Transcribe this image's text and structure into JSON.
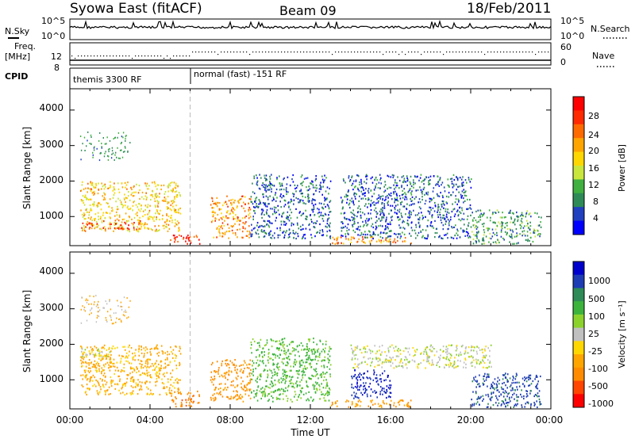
{
  "header": {
    "title": "Syowa East (fitACF)",
    "beam": "Beam 09",
    "date": "18/Feb/2011"
  },
  "strips": {
    "nsky_label": "N.Sky",
    "nsearch_label": "N.Search",
    "nsky_ticks": [
      "10^5",
      "10^0"
    ],
    "nsearch_ticks": [
      "10^5",
      "10^0"
    ],
    "freq_label_1": "Freq.",
    "freq_label_2": "[MHz]",
    "freq_ticks": [
      "12",
      "8"
    ],
    "nave_label": "Nave",
    "nave_ticks": [
      "60",
      "0"
    ],
    "cpid_label": "CPID",
    "cpid_segments": [
      "themis 3300 RF",
      "normal (fast) -151 RF"
    ]
  },
  "power_panel": {
    "ylabel": "Slant Range [km]",
    "yticks": [
      "4000",
      "3000",
      "2000",
      "1000"
    ],
    "colorbar_label": "Power [dB]",
    "colorbar_ticks": [
      "28",
      "24",
      "20",
      "16",
      "12",
      "8",
      "4"
    ],
    "colors": [
      "#0000ff",
      "#2040c0",
      "#2e8b57",
      "#40b040",
      "#c8e63c",
      "#ffd700",
      "#ffa500",
      "#ff6a00",
      "#ff2a00",
      "#ff0000"
    ]
  },
  "velocity_panel": {
    "ylabel": "Slant Range [km]",
    "yticks": [
      "4000",
      "3000",
      "2000",
      "1000"
    ],
    "colorbar_label": "Velocity [m s⁻¹]",
    "colorbar_ticks": [
      "1000",
      "500",
      "100",
      "25",
      "-25",
      "-100",
      "-500",
      "-1000"
    ],
    "colors": [
      "#0000cd",
      "#1e3cb4",
      "#2e8b57",
      "#3cb43c",
      "#8cd22d",
      "#c0c0c0",
      "#ffd700",
      "#ffa500",
      "#ff8c00",
      "#ff4500",
      "#ff0000"
    ]
  },
  "xaxis": {
    "label": "Time UT",
    "ticks": [
      "00:00",
      "04:00",
      "08:00",
      "12:00",
      "16:00",
      "20:00",
      "00:00"
    ]
  },
  "chart_data": {
    "type": "heatmap",
    "title": "Syowa East (fitACF)",
    "subtitle": "Beam 09",
    "xlabel": "Time UT",
    "ylabel": "Slant Range [km]",
    "x_ticks": [
      "00:00",
      "04:00",
      "08:00",
      "12:00",
      "16:00",
      "20:00",
      "00:00"
    ],
    "y_ticks": [
      1000,
      2000,
      3000,
      4000
    ],
    "xlim_hours": [
      0,
      24
    ],
    "ylim_km": [
      180,
      4600
    ],
    "cpid_switch_hour": 6,
    "panels": [
      {
        "quantity": "Power",
        "units": "dB",
        "color_ticks": [
          4,
          8,
          12,
          16,
          20,
          24,
          28
        ],
        "regions": [
          {
            "t0": 0.5,
            "t1": 5.5,
            "r0": 600,
            "r1": 2000,
            "value": 18
          },
          {
            "t0": 0.5,
            "t1": 3.5,
            "r0": 650,
            "r1": 900,
            "value": 26
          },
          {
            "t0": 0.5,
            "t1": 1.5,
            "r0": 1650,
            "r1": 1800,
            "value": 22
          },
          {
            "t0": 5.0,
            "t1": 6.5,
            "r0": 250,
            "r1": 500,
            "value": 28
          },
          {
            "t0": 7.0,
            "t1": 9.0,
            "r0": 400,
            "r1": 1600,
            "value": 22
          },
          {
            "t0": 9.0,
            "t1": 13.0,
            "r0": 400,
            "r1": 2200,
            "value": 6
          },
          {
            "t0": 13.0,
            "t1": 17.0,
            "r0": 250,
            "r1": 450,
            "value": 22
          },
          {
            "t0": 13.5,
            "t1": 20.0,
            "r0": 400,
            "r1": 2200,
            "value": 6
          },
          {
            "t0": 20.0,
            "t1": 23.5,
            "r0": 250,
            "r1": 1200,
            "value": 10
          }
        ]
      },
      {
        "quantity": "Velocity",
        "units": "m s^-1",
        "color_ticks": [
          -1000,
          -500,
          -100,
          -25,
          25,
          100,
          500,
          1000
        ],
        "regions": [
          {
            "t0": 0.5,
            "t1": 5.5,
            "r0": 600,
            "r1": 2000,
            "value": -100
          },
          {
            "t0": 0.5,
            "t1": 2.0,
            "r0": 1650,
            "r1": 1900,
            "value": 0
          },
          {
            "t0": 5.0,
            "t1": 6.5,
            "r0": 250,
            "r1": 700,
            "value": -300
          },
          {
            "t0": 7.0,
            "t1": 9.0,
            "r0": 400,
            "r1": 1600,
            "value": -200
          },
          {
            "t0": 9.0,
            "t1": 13.0,
            "r0": 400,
            "r1": 2200,
            "value": 100
          },
          {
            "t0": 13.0,
            "t1": 17.0,
            "r0": 250,
            "r1": 450,
            "value": -150
          },
          {
            "t0": 14.0,
            "t1": 16.0,
            "r0": 500,
            "r1": 1300,
            "value": 700
          },
          {
            "t0": 14.0,
            "t1": 21.0,
            "r0": 1350,
            "r1": 2000,
            "value": 0
          },
          {
            "t0": 20.0,
            "t1": 23.5,
            "r0": 250,
            "r1": 1200,
            "value": 500
          }
        ]
      }
    ]
  }
}
